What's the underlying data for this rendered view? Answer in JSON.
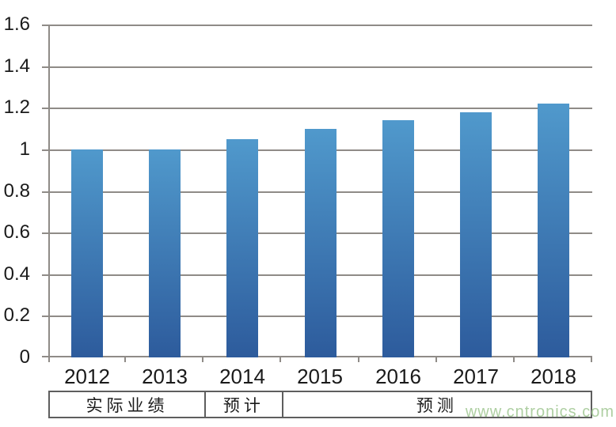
{
  "chart_data": {
    "type": "bar",
    "categories": [
      "2012",
      "2013",
      "2014",
      "2015",
      "2016",
      "2017",
      "2018"
    ],
    "values": [
      1.0,
      1.0,
      1.05,
      1.1,
      1.14,
      1.18,
      1.22
    ],
    "title": "",
    "xlabel": "",
    "ylabel": "",
    "ylim": [
      0,
      1.6
    ],
    "ytick_step": 0.2,
    "ytick_labels": [
      "0",
      "0.2",
      "0.4",
      "0.6",
      "0.8",
      "1",
      "1.2",
      "1.4",
      "1.6"
    ],
    "grid": true,
    "legend": "none",
    "colors": {
      "bar_gradient_top": "#5099cc",
      "bar_gradient_bottom": "#2d5b9c",
      "gridline": "#8f8b87",
      "axis": "#8f8b87",
      "text": "#1a1a1a"
    }
  },
  "phase_table": {
    "cells": [
      {
        "label": "实际业绩",
        "span": 2
      },
      {
        "label": "预计",
        "span": 1
      },
      {
        "label": "预测",
        "span": 4
      }
    ],
    "border_color": "#5e5e5e"
  },
  "watermark": {
    "text": "www.cntronics.com",
    "color": "#aecfa2"
  }
}
